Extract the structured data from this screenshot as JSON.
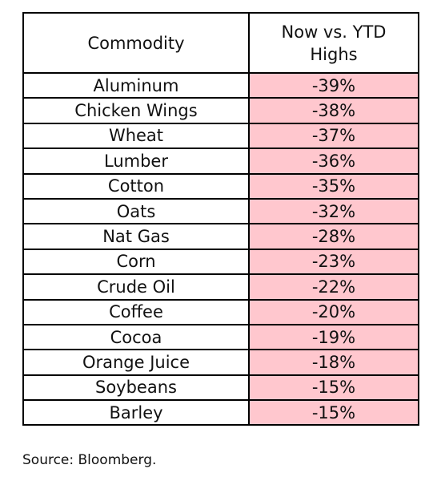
{
  "chart_data": {
    "type": "table",
    "columns": [
      "Commodity",
      [
        "Now vs. YTD",
        "Highs"
      ]
    ],
    "rows": [
      {
        "commodity": "Aluminum",
        "value": -39,
        "label": "-39%"
      },
      {
        "commodity": "Chicken Wings",
        "value": -38,
        "label": "-38%"
      },
      {
        "commodity": "Wheat",
        "value": -37,
        "label": "-37%"
      },
      {
        "commodity": "Lumber",
        "value": -36,
        "label": "-36%"
      },
      {
        "commodity": "Cotton",
        "value": -35,
        "label": "-35%"
      },
      {
        "commodity": "Oats",
        "value": -32,
        "label": "-32%"
      },
      {
        "commodity": "Nat Gas",
        "value": -28,
        "label": "-28%"
      },
      {
        "commodity": "Corn",
        "value": -23,
        "label": "-23%"
      },
      {
        "commodity": "Crude Oil",
        "value": -22,
        "label": "-22%"
      },
      {
        "commodity": "Coffee",
        "value": -20,
        "label": "-20%"
      },
      {
        "commodity": "Cocoa",
        "value": -19,
        "label": "-19%"
      },
      {
        "commodity": "Orange Juice",
        "value": -18,
        "label": "-18%"
      },
      {
        "commodity": "Soybeans",
        "value": -15,
        "label": "-15%"
      },
      {
        "commodity": "Barley",
        "value": -15,
        "label": "-15%"
      }
    ],
    "value_cell_color": "#ffc7ce",
    "source": "Source: Bloomberg."
  }
}
